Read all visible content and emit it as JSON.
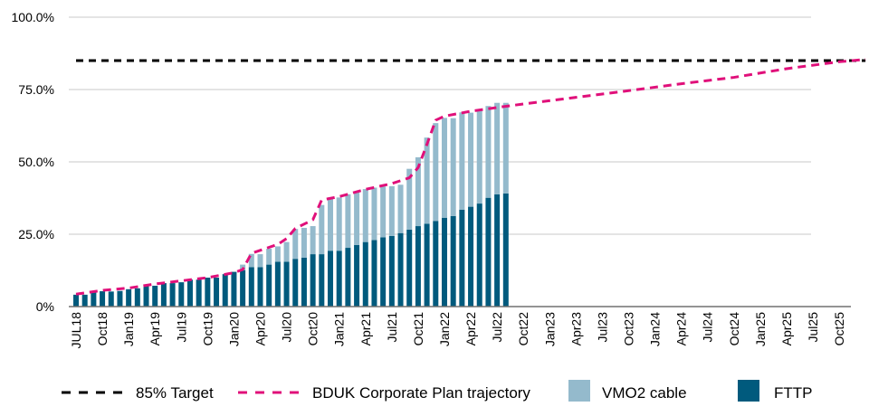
{
  "chart_data": {
    "type": "bar",
    "stacked": true,
    "title": "",
    "xlabel": "",
    "ylabel": "",
    "ylim": [
      0,
      100
    ],
    "y_ticks": [
      "0%",
      "25.0%",
      "50.0%",
      "75.0%",
      "100.0%"
    ],
    "y_tick_values": [
      0,
      25,
      50,
      75,
      100
    ],
    "grid": "horizontal",
    "legend_position": "bottom",
    "x_ticks": [
      "JUL18",
      "Oct18",
      "Jan19",
      "Apr19",
      "Jul19",
      "Oct19",
      "Jan20",
      "Apr20",
      "Jul20",
      "Oct20",
      "Jan21",
      "Apr21",
      "Jul21",
      "Oct21",
      "Jan22",
      "Apr22",
      "Jul22",
      "Oct22",
      "Jan23",
      "Apr23",
      "Jul23",
      "Oct23",
      "Jan24",
      "Apr24",
      "Jul24",
      "Oct24",
      "Jan25",
      "Apr25",
      "Jul25",
      "Oct25"
    ],
    "categories": [
      "Jul18",
      "Aug18",
      "Sep18",
      "Oct18",
      "Nov18",
      "Dec18",
      "Jan19",
      "Feb19",
      "Mar19",
      "Apr19",
      "May19",
      "Jun19",
      "Jul19",
      "Aug19",
      "Sep19",
      "Oct19",
      "Nov19",
      "Dec19",
      "Jan20",
      "Feb20",
      "Mar20",
      "Apr20",
      "May20",
      "Jun20",
      "Jul20",
      "Aug20",
      "Sep20",
      "Oct20",
      "Nov20",
      "Dec20",
      "Jan21",
      "Feb21",
      "Mar21",
      "Apr21",
      "May21",
      "Jun21",
      "Jul21",
      "Aug21",
      "Sep21",
      "Oct21",
      "Nov21",
      "Dec21",
      "Jan22",
      "Feb22",
      "Mar22",
      "Apr22",
      "May22",
      "Jun22",
      "Jul22",
      "Aug22"
    ],
    "series": [
      {
        "name": "FTTP",
        "color": "#005A7D",
        "values": [
          4.1,
          4.1,
          5.1,
          5.3,
          5.2,
          5.4,
          6.0,
          6.3,
          7.1,
          7.2,
          8.1,
          8.1,
          8.4,
          9.3,
          9.3,
          10.0,
          10.0,
          11.2,
          12.0,
          12.6,
          13.6,
          13.6,
          14.5,
          15.5,
          15.5,
          16.5,
          16.9,
          18.1,
          18.1,
          19.3,
          19.3,
          20.3,
          21.3,
          22.3,
          23.0,
          23.9,
          24.4,
          25.4,
          26.6,
          27.8,
          28.6,
          29.6,
          30.7,
          31.3,
          33.5,
          34.5,
          35.6,
          37.6,
          38.8,
          39.1
        ]
      },
      {
        "name": "VMO2 cable",
        "color": "#94BACC",
        "values": [
          0,
          0,
          0,
          0,
          0,
          0,
          0,
          0,
          0,
          0,
          0,
          0,
          0,
          0,
          0,
          0,
          0,
          0,
          0,
          1.9,
          4.6,
          4.5,
          5.5,
          5.3,
          6.8,
          10.3,
          10.3,
          9.7,
          17.0,
          18.4,
          18.4,
          18.5,
          18.3,
          18.3,
          18.1,
          17.6,
          17.2,
          16.7,
          21.0,
          23.8,
          29.8,
          33.8,
          34.5,
          33.8,
          33.6,
          32.5,
          32.5,
          31.7,
          31.6,
          31.3
        ]
      }
    ],
    "lines": [
      {
        "name": "85% Target",
        "color": "#000000",
        "style": "dashed",
        "points": [
          [
            "Jul18",
            85
          ],
          [
            "Jan26",
            85
          ]
        ]
      },
      {
        "name": "BDUK Corporate Plan trajectory",
        "color": "#E0107A",
        "style": "dashed",
        "points": [
          [
            "Jul18",
            4.3
          ],
          [
            "Oct18",
            5.6
          ],
          [
            "Jan19",
            6.4
          ],
          [
            "Apr19",
            7.8
          ],
          [
            "Jul19",
            8.9
          ],
          [
            "Oct19",
            10.0
          ],
          [
            "Jan20",
            11.7
          ],
          [
            "Feb20",
            12.8
          ],
          [
            "Mar20",
            18.4
          ],
          [
            "Jun20",
            21.5
          ],
          [
            "Jul20",
            23.5
          ],
          [
            "Aug20",
            27.0
          ],
          [
            "Oct20",
            30.0
          ],
          [
            "Nov20",
            36.8
          ],
          [
            "Jan21",
            38.0
          ],
          [
            "Apr21",
            40.5
          ],
          [
            "Jul21",
            42.5
          ],
          [
            "Sep21",
            44.5
          ],
          [
            "Oct21",
            48.0
          ],
          [
            "Nov21",
            56.0
          ],
          [
            "Dec21",
            64.4
          ],
          [
            "Jan22",
            65.8
          ],
          [
            "Apr22",
            67.5
          ],
          [
            "Jul22",
            68.8
          ],
          [
            "Oct22",
            70.0
          ],
          [
            "Apr23",
            72.3
          ],
          [
            "Oct23",
            74.6
          ],
          [
            "Apr24",
            77.0
          ],
          [
            "Oct24",
            79.2
          ],
          [
            "Apr25",
            82.2
          ],
          [
            "Oct25",
            84.6
          ],
          [
            "Jan26",
            85.4
          ]
        ]
      }
    ],
    "legend": [
      {
        "label": "85% Target",
        "kind": "dash",
        "color": "#000000"
      },
      {
        "label": "BDUK Corporate Plan trajectory",
        "kind": "dash",
        "color": "#E0107A"
      },
      {
        "label": "VMO2 cable",
        "kind": "box",
        "color": "#94BACC"
      },
      {
        "label": "FTTP",
        "kind": "box",
        "color": "#005A7D"
      }
    ]
  }
}
